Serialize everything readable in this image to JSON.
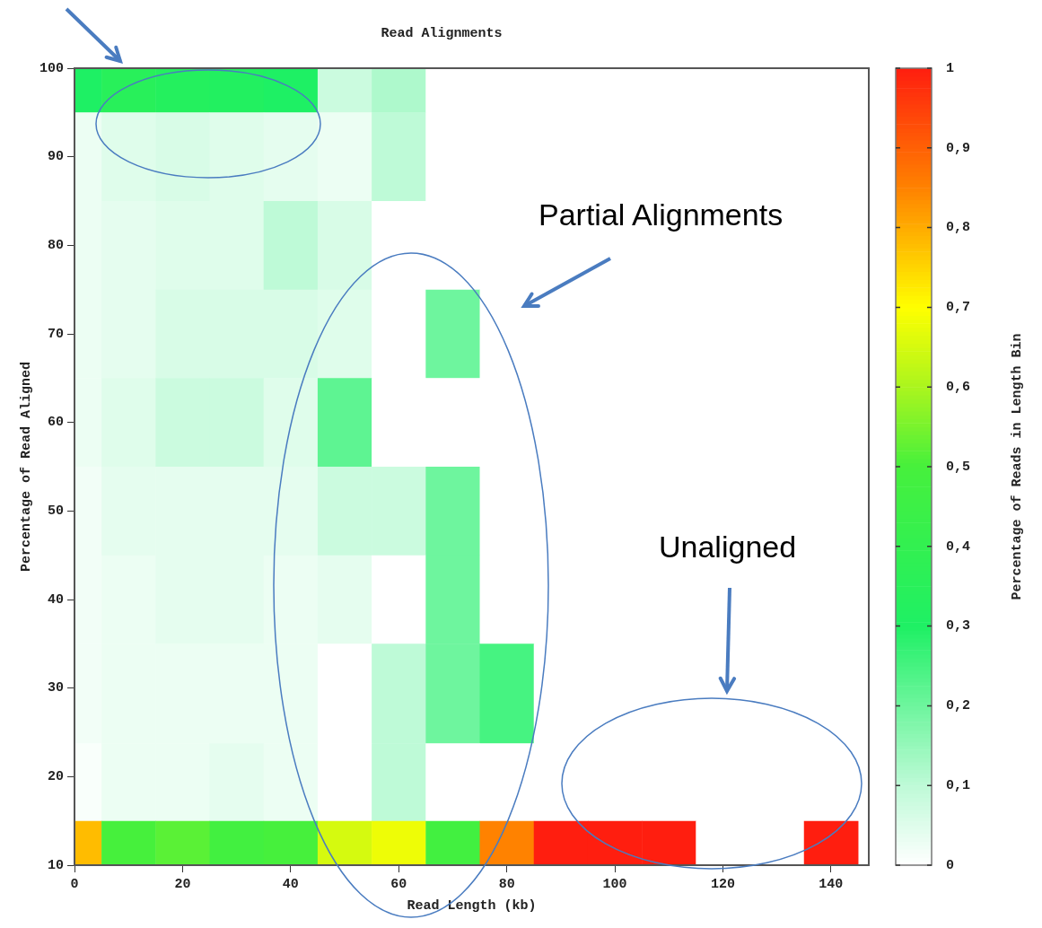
{
  "chart_data": {
    "type": "heatmap",
    "title": "Read Alignments",
    "xlabel": "Read Length (kb)",
    "ylabel": "Percentage of Read Aligned",
    "clabel": "Percentage of Reads in Length Bin",
    "x": [
      2.5,
      10,
      20,
      30,
      40,
      50,
      60,
      70,
      80,
      90,
      100,
      110,
      120,
      130,
      140
    ],
    "y": [
      97.5,
      90,
      80,
      70,
      60,
      50,
      40,
      30,
      20,
      12.5
    ],
    "xlim": [
      0,
      147
    ],
    "ylim": [
      10,
      100
    ],
    "xticks": [
      0,
      20,
      40,
      60,
      80,
      100,
      120,
      140
    ],
    "yticks": [
      10,
      20,
      30,
      40,
      50,
      60,
      70,
      80,
      90,
      100
    ],
    "cells": [
      [
        0.3,
        0.35,
        0.33,
        0.32,
        0.3,
        0.08,
        0.12,
        0,
        0,
        0,
        0,
        0,
        0,
        0,
        0
      ],
      [
        0.03,
        0.05,
        0.06,
        0.05,
        0.04,
        0.03,
        0.1,
        0,
        0,
        0,
        0,
        0,
        0,
        0,
        0
      ],
      [
        0.03,
        0.04,
        0.05,
        0.05,
        0.1,
        0.06,
        0,
        0,
        0,
        0,
        0,
        0,
        0,
        0,
        0
      ],
      [
        0.03,
        0.04,
        0.06,
        0.06,
        0.06,
        0.05,
        0,
        0.2,
        0,
        0,
        0,
        0,
        0,
        0,
        0
      ],
      [
        0.03,
        0.05,
        0.08,
        0.08,
        0.05,
        0.22,
        0,
        0,
        0,
        0,
        0,
        0,
        0,
        0,
        0
      ],
      [
        0.02,
        0.04,
        0.04,
        0.04,
        0.04,
        0.08,
        0.08,
        0.2,
        0,
        0,
        0,
        0,
        0,
        0,
        0
      ],
      [
        0.02,
        0.03,
        0.04,
        0.04,
        0.03,
        0.04,
        0,
        0.2,
        0,
        0,
        0,
        0,
        0,
        0,
        0
      ],
      [
        0.02,
        0.03,
        0.03,
        0.03,
        0.03,
        0,
        0.1,
        0.2,
        0.25,
        0,
        0,
        0,
        0,
        0,
        0
      ],
      [
        0.01,
        0.03,
        0.03,
        0.04,
        0.03,
        0,
        0.1,
        0,
        0,
        0,
        0,
        0,
        0,
        0,
        0
      ],
      [
        0.78,
        0.5,
        0.52,
        0.48,
        0.5,
        0.65,
        0.68,
        0.48,
        0.85,
        1,
        1,
        1,
        0,
        0,
        1
      ]
    ],
    "clim": [
      0,
      1
    ],
    "cticks": [
      {
        "value": 0,
        "label": "0"
      },
      {
        "value": 0.1,
        "label": "0,1"
      },
      {
        "value": 0.2,
        "label": "0,2"
      },
      {
        "value": 0.3,
        "label": "0,3"
      },
      {
        "value": 0.4,
        "label": "0,4"
      },
      {
        "value": 0.5,
        "label": "0,5"
      },
      {
        "value": 0.6,
        "label": "0,6"
      },
      {
        "value": 0.7,
        "label": "0,7"
      },
      {
        "value": 0.8,
        "label": "0,8"
      },
      {
        "value": 0.9,
        "label": "0,9"
      },
      {
        "value": 1,
        "label": "1"
      }
    ],
    "annotations": [
      "Partial Alignments",
      "Unaligned"
    ]
  }
}
